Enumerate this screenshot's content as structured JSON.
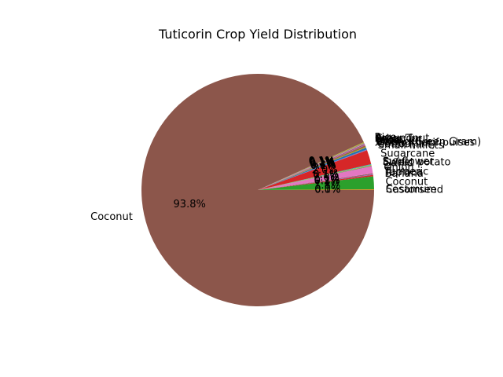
{
  "chart_data": {
    "type": "pie",
    "title": "Tuticorin Crop Yield Distribution",
    "slices": [
      {
        "label": "Castorseed",
        "value": 0.0,
        "pct_label": "0.0%",
        "color": "#1f77b4"
      },
      {
        "label": "Sesamum",
        "value": 0.1,
        "pct_label": "0.1%",
        "color": "#ff7f0e"
      },
      {
        "label": "Coconut",
        "value": 1.8,
        "pct_label": "1.8%",
        "color": "#2ca02c"
      },
      {
        "label": "Banana",
        "value": 0.2,
        "pct_label": "0.2%",
        "color": "#d62728"
      },
      {
        "label": "Tapioca",
        "value": 0.1,
        "pct_label": "0.1%",
        "color": "#9467bd"
      },
      {
        "label": "Turmeric",
        "value": 0.1,
        "pct_label": "0.1%",
        "color": "#8c564b"
      },
      {
        "label": "Onion",
        "value": 1.0,
        "pct_label": "1.0%",
        "color": "#e377c2"
      },
      {
        "label": "Garlic",
        "value": 0.1,
        "pct_label": "0.1%",
        "color": "#7f7f7f"
      },
      {
        "label": "Sweet potato",
        "value": 0.1,
        "pct_label": "0.1%",
        "color": "#bcbd22"
      },
      {
        "label": "Sunflower",
        "value": 0.1,
        "pct_label": "0.1%",
        "color": "#17becf"
      },
      {
        "label": "Sugarcane",
        "value": 2.0,
        "pct_label": "2.0%",
        "color": "#d62728"
      },
      {
        "label": "Small millets",
        "value": 0.1,
        "pct_label": "0.1%",
        "color": "#9467bd"
      },
      {
        "label": "Cotton(lint)",
        "value": 0.3,
        "pct_label": "0.3%",
        "color": "#1f77b4"
      },
      {
        "label": "Other Kharif pulses",
        "value": 0.1,
        "pct_label": "0.1%",
        "color": "#ff7f0e"
      },
      {
        "label": "Moong(Green Gram)",
        "value": 0.1,
        "pct_label": "0.1%",
        "color": "#2ca02c"
      },
      {
        "label": "Urad",
        "value": 0.1,
        "pct_label": "0.1%",
        "color": "#d62728"
      },
      {
        "label": "Jowar",
        "value": 0.1,
        "pct_label": "0.1%",
        "color": "#9467bd"
      },
      {
        "label": "Bajra",
        "value": 0.1,
        "pct_label": "0.1%",
        "color": "#8c564b"
      },
      {
        "label": "Arhar/Tur",
        "value": 0.1,
        "pct_label": "0.1%",
        "color": "#e377c2"
      },
      {
        "label": "Groundnut",
        "value": 0.1,
        "pct_label": "0.1%",
        "color": "#7f7f7f"
      },
      {
        "label": "Rice",
        "value": 0.1,
        "pct_label": "0.1%",
        "color": "#bcbd22"
      },
      {
        "label": "Coconut",
        "value": 93.8,
        "pct_label": "93.8%",
        "color": "#8c564b"
      }
    ],
    "start_angle_deg": 0,
    "direction": "counterclockwise"
  }
}
